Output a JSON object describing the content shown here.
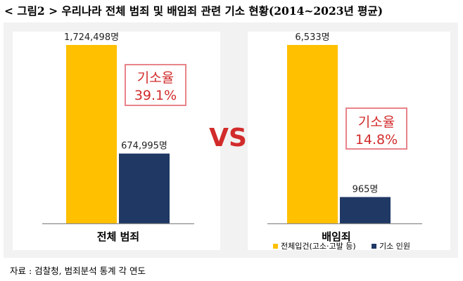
{
  "title": "< 그림2 > 우리나라 전체 범죄 및 배임죄 관련 기소 현황(2014~2023년 평균)",
  "source_note": "자료 : 검찰청, 범죄분석 통계 각 연도",
  "vs_label": "VS",
  "colors": {
    "total_cases": "#ffc000",
    "prosecuted": "#1f3864",
    "rate_text": "#d22b2b",
    "rate_border": "#e8848a",
    "background": "#f2f2f2"
  },
  "chart_data": [
    {
      "type": "bar",
      "category": "전체 범죄",
      "series": [
        {
          "name": "전체입건(고소·고발 등)",
          "value": 1724498,
          "label": "1,724,498명"
        },
        {
          "name": "기소 인원",
          "value": 674995,
          "label": "674,995명"
        }
      ],
      "rate": {
        "label": "기소율",
        "value": "39.1%"
      },
      "ylim": [
        0,
        1724498
      ]
    },
    {
      "type": "bar",
      "category": "배임죄",
      "series": [
        {
          "name": "전체입건(고소·고발 등)",
          "value": 6533,
          "label": "6,533명"
        },
        {
          "name": "기소 인원",
          "value": 965,
          "label": "965명"
        }
      ],
      "rate": {
        "label": "기소율",
        "value": "14.8%"
      },
      "ylim": [
        0,
        6533
      ]
    }
  ],
  "legend": {
    "placement": "bottom-right",
    "items": [
      {
        "name": "전체입건(고소·고발 등)",
        "color": "#ffc000"
      },
      {
        "name": "기소 인원",
        "color": "#1f3864"
      }
    ]
  }
}
